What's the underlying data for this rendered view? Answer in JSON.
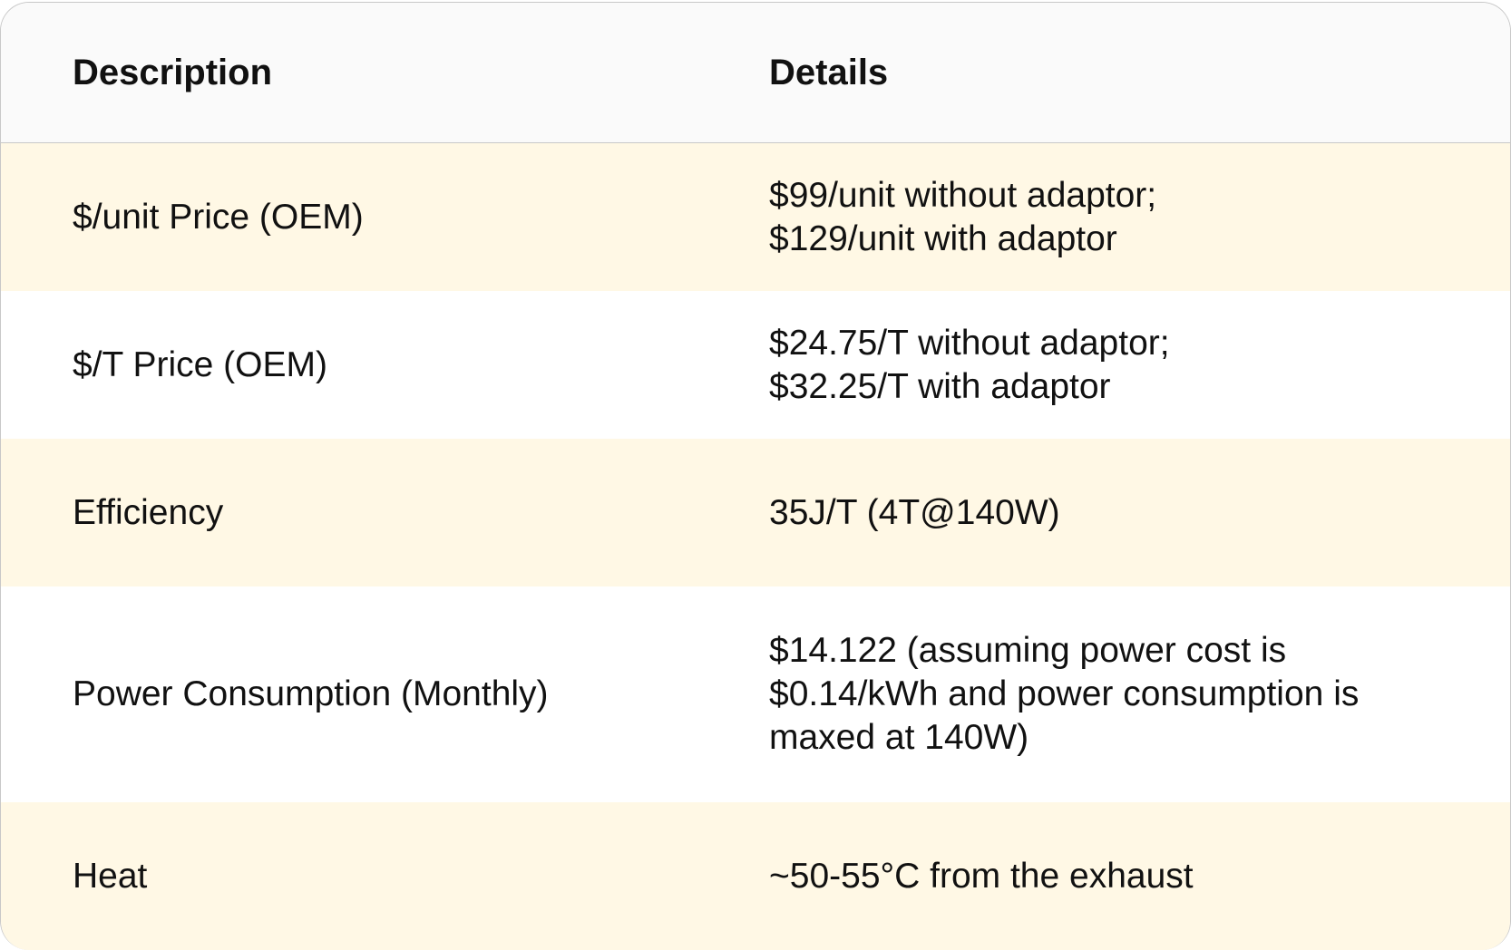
{
  "header": {
    "col1": "Description",
    "col2": "Details"
  },
  "rows": [
    {
      "description": "$/unit Price (OEM)",
      "details": [
        "$99/unit without adaptor;",
        "$129/unit with adaptor"
      ]
    },
    {
      "description": "$/T Price (OEM)",
      "details": [
        "$24.75/T without adaptor;",
        "$32.25/T with adaptor"
      ]
    },
    {
      "description": "Efficiency",
      "details": [
        "35J/T (4T@140W)"
      ]
    },
    {
      "description": "Power Consumption (Monthly)",
      "details": [
        "$14.122 (assuming power cost is",
        "$0.14/kWh and power consumption is",
        "maxed at 140W)"
      ]
    },
    {
      "description": "Heat",
      "details": [
        "~50-55°C from the exhaust"
      ]
    }
  ],
  "colors": {
    "header_bg": "#fafafa",
    "alt_row_bg": "#fff8e5",
    "border": "#c8c8c8"
  }
}
